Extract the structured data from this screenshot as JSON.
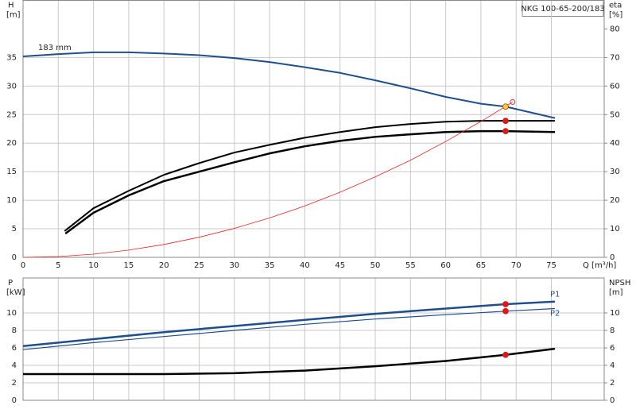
{
  "chart_data": [
    {
      "type": "line",
      "title": "NKG 100-65-200/183",
      "annotation": "183 mm",
      "ylabel": "H",
      "yunit": "[m]",
      "y2label": "eta",
      "y2unit": "[%]",
      "xlabel": "Q [m³/h]",
      "xlim": [
        0,
        82.5
      ],
      "xticks": [
        0,
        5,
        10,
        15,
        20,
        25,
        30,
        35,
        40,
        45,
        50,
        55,
        60,
        65,
        70,
        75
      ],
      "ylim": [
        0,
        45
      ],
      "yticks": [
        0,
        5,
        10,
        15,
        20,
        25,
        30,
        35
      ],
      "y2lim": [
        0,
        90
      ],
      "y2ticks": [
        0,
        10,
        20,
        30,
        40,
        50,
        60,
        70,
        80
      ],
      "grid": true,
      "series": [
        {
          "color": "#1f4e8c",
          "x": [
            0,
            5,
            10,
            15,
            20,
            25,
            30,
            35,
            40,
            45,
            50,
            55,
            60,
            65,
            68.5,
            75.5
          ],
          "values": [
            35.2,
            35.6,
            35.9,
            35.9,
            35.7,
            35.4,
            34.9,
            34.2,
            33.3,
            32.3,
            31.0,
            29.6,
            28.1,
            26.9,
            26.4,
            24.4
          ]
        },
        {
          "color": "#000000",
          "axis": "y2",
          "x": [
            5.9,
            10,
            15,
            20,
            25,
            30,
            35,
            40,
            45,
            50,
            55,
            60,
            65,
            68.5,
            75.5
          ],
          "values": [
            9.2,
            17.2,
            23.3,
            28.9,
            33,
            36.7,
            39.4,
            41.9,
            43.9,
            45.6,
            46.7,
            47.5,
            47.8,
            47.8,
            47.8
          ]
        },
        {
          "color": "#000000",
          "axis": "y2",
          "x": [
            6,
            10,
            15,
            20,
            25,
            30,
            35,
            40,
            45,
            50,
            55,
            60,
            65,
            68.5,
            75.5
          ],
          "values": [
            8.3,
            15.6,
            21.7,
            26.7,
            30,
            33.3,
            36.4,
            38.9,
            40.8,
            42.2,
            43.1,
            43.9,
            44.2,
            44.2,
            43.9
          ]
        },
        {
          "color": "#ee2222",
          "x": [
            0,
            5,
            10,
            15,
            20,
            25,
            30,
            35,
            40,
            45,
            50,
            55,
            60,
            65,
            69.5
          ],
          "values": [
            0,
            0.14,
            0.56,
            1.27,
            2.25,
            3.52,
            5.07,
            6.9,
            9.0,
            11.4,
            14.1,
            17.0,
            20.3,
            23.8,
            27.2
          ]
        }
      ],
      "points": [
        {
          "x": 68.5,
          "y": 26.4,
          "color": "#ffd21f"
        },
        {
          "x": 68.5,
          "y": 47.8,
          "axis": "y2",
          "color": "#ee1111"
        },
        {
          "x": 68.5,
          "y": 44.2,
          "axis": "y2",
          "color": "#ee1111"
        },
        {
          "x": 69.5,
          "y": 27.2,
          "color": "#ee1111",
          "hollow": true
        }
      ]
    },
    {
      "type": "line",
      "ylabel": "P",
      "yunit": "[kW]",
      "y2label": "NPSH",
      "y2unit": "[m]",
      "xlim": [
        0,
        82.5
      ],
      "xticks": [
        0,
        5,
        10,
        15,
        20,
        25,
        30,
        35,
        40,
        45,
        50,
        55,
        60,
        65,
        70,
        75
      ],
      "ylim": [
        0,
        14
      ],
      "yticks": [
        0,
        2,
        4,
        6,
        8,
        10
      ],
      "y2lim": [
        0,
        14
      ],
      "y2ticks": [
        0,
        2,
        4,
        6,
        8,
        10
      ],
      "grid": true,
      "series": [
        {
          "name": "P1",
          "color": "#1f4e8c",
          "x": [
            0,
            10,
            20,
            30,
            40,
            50,
            60,
            68.5,
            75.5
          ],
          "values": [
            6.2,
            7.0,
            7.8,
            8.5,
            9.2,
            9.9,
            10.5,
            11.0,
            11.3
          ]
        },
        {
          "name": "P2",
          "color": "#1f4e8c",
          "x": [
            0,
            10,
            20,
            30,
            40,
            50,
            60,
            68.5,
            75.5
          ],
          "values": [
            5.8,
            6.6,
            7.3,
            8.0,
            8.7,
            9.3,
            9.8,
            10.2,
            10.5
          ]
        },
        {
          "color": "#000000",
          "axis": "y2",
          "x": [
            0,
            7.5,
            20,
            30,
            40,
            50,
            60,
            68.5,
            75.5
          ],
          "values": [
            3.0,
            3.0,
            3.0,
            3.1,
            3.4,
            3.9,
            4.5,
            5.2,
            5.9
          ]
        }
      ],
      "points": [
        {
          "x": 68.5,
          "y": 11.0,
          "color": "#ee1111"
        },
        {
          "x": 68.5,
          "y": 10.2,
          "color": "#ee1111"
        },
        {
          "x": 68.5,
          "y": 5.2,
          "axis": "y2",
          "color": "#ee1111"
        }
      ]
    }
  ]
}
